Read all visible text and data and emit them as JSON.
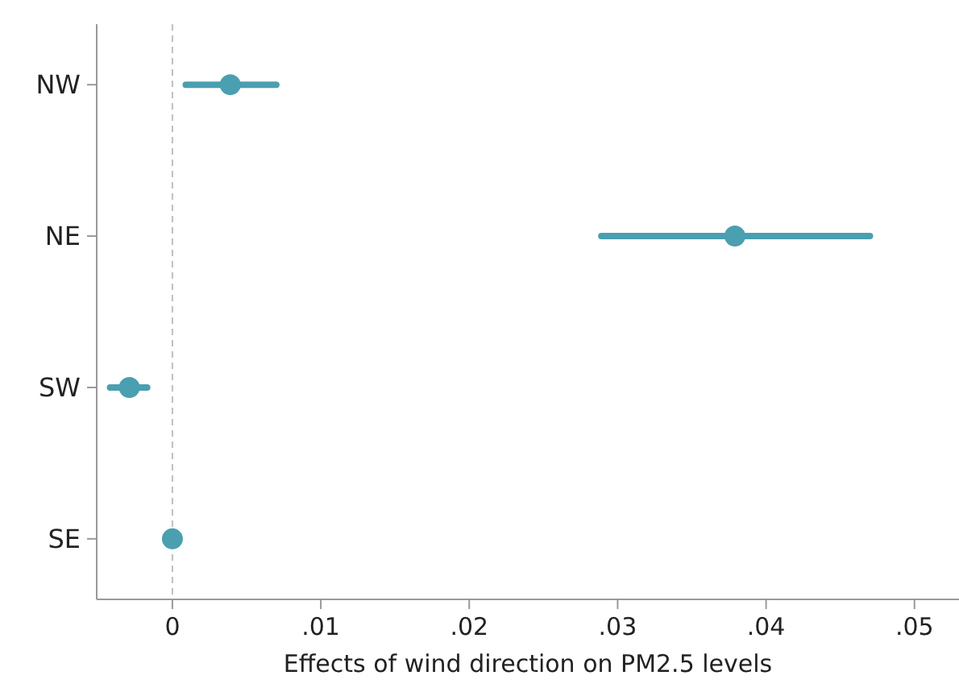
{
  "chart_data": {
    "type": "scatter",
    "orientation": "horizontal",
    "xlabel": "Effects of wind direction on PM2.5 levels",
    "categories": [
      "NW",
      "NE",
      "SW",
      "SE"
    ],
    "values": [
      0.0039,
      0.0379,
      -0.0029,
      0
    ],
    "errors": [
      [
        0.0009,
        0.007
      ],
      [
        0.0289,
        0.047
      ],
      [
        -0.0042,
        -0.0017
      ],
      null
    ],
    "color": "#4a9fb0",
    "marker": "circle",
    "xlim": [
      -0.0051,
      0.053
    ],
    "xticks": [
      0,
      {
        "value": 0.01,
        "label": ".01"
      },
      {
        "value": 0.02,
        "label": ".02"
      },
      {
        "value": 0.03,
        "label": ".03"
      },
      {
        "value": 0.04,
        "label": ".04"
      },
      {
        "value": 0.05,
        "label": ".05"
      }
    ],
    "ref_lines": [
      {
        "axis": "x",
        "value": 0,
        "color": "#c0c0c0",
        "line_style": "dashed"
      }
    ],
    "grid": false
  }
}
